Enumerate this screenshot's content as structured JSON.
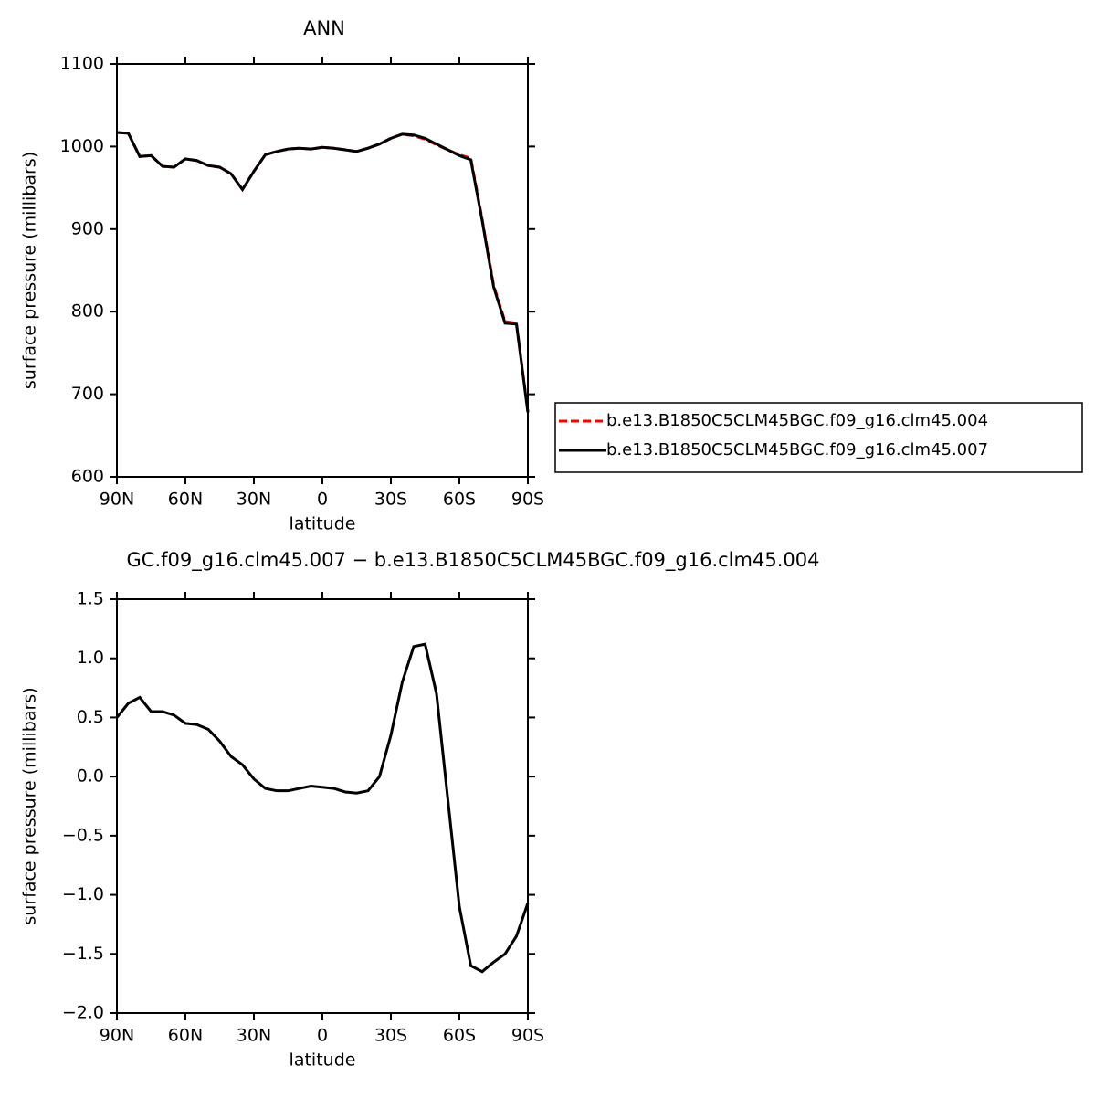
{
  "chart_data": [
    {
      "type": "line",
      "title": "ANN",
      "xlabel": "latitude",
      "ylabel": "surface pressure (millibars)",
      "x": [
        90,
        85,
        80,
        75,
        70,
        65,
        60,
        55,
        50,
        45,
        40,
        35,
        30,
        25,
        20,
        15,
        10,
        5,
        0,
        -5,
        -10,
        -15,
        -20,
        -25,
        -30,
        -35,
        -40,
        -45,
        -50,
        -55,
        -60,
        -65,
        -70,
        -75,
        -80,
        -85,
        -90
      ],
      "series": [
        {
          "name": "b.e13.B1850C5CLM45BGC.f09_g16.clm45.004",
          "color": "#ff0000",
          "dash": true,
          "values": [
            1017,
            1016,
            988,
            989,
            976,
            975,
            985,
            983,
            977,
            975,
            967,
            948,
            970,
            990,
            994,
            997,
            998,
            997,
            999,
            998,
            996,
            994,
            998,
            1003,
            1010,
            1015,
            1013,
            1009,
            1002,
            996,
            990,
            986,
            912,
            832,
            788,
            786,
            679
          ]
        },
        {
          "name": "b.e13.B1850C5CLM45BGC.f09_g16.clm45.007",
          "color": "#000000",
          "dash": false,
          "values": [
            1017,
            1016,
            988,
            989,
            976,
            975,
            985,
            983,
            977,
            975,
            967,
            948,
            970,
            990,
            994,
            997,
            998,
            997,
            999,
            998,
            996,
            994,
            998,
            1003,
            1010,
            1015,
            1014,
            1010,
            1003,
            996,
            989,
            984,
            910,
            830,
            786,
            785,
            678
          ]
        }
      ],
      "xlim": [
        90,
        -90
      ],
      "xticks": [
        {
          "value": 90,
          "label": "90N"
        },
        {
          "value": 60,
          "label": "60N"
        },
        {
          "value": 30,
          "label": "30N"
        },
        0,
        {
          "value": -30,
          "label": "30S"
        },
        {
          "value": -60,
          "label": "60S"
        },
        {
          "value": -90,
          "label": "90S"
        }
      ],
      "ylim": [
        600,
        1100
      ],
      "yticks": [
        600,
        700,
        800,
        900,
        1000,
        1100
      ]
    },
    {
      "type": "line",
      "title": "GC.f09_g16.clm45.007 − b.e13.B1850C5CLM45BGC.f09_g16.clm45.004",
      "xlabel": "latitude",
      "ylabel": "surface pressure (millibars)",
      "x": [
        90,
        85,
        80,
        75,
        70,
        65,
        60,
        55,
        50,
        45,
        40,
        35,
        30,
        25,
        20,
        15,
        10,
        5,
        0,
        -5,
        -10,
        -15,
        -20,
        -25,
        -30,
        -35,
        -40,
        -45,
        -50,
        -55,
        -60,
        -65,
        -70,
        -75,
        -80,
        -85,
        -90
      ],
      "series": [
        {
          "color": "#000000",
          "dash": false,
          "values": [
            0.5,
            0.62,
            0.67,
            0.55,
            0.55,
            0.52,
            0.45,
            0.44,
            0.4,
            0.3,
            0.17,
            0.1,
            -0.02,
            -0.1,
            -0.12,
            -0.12,
            -0.1,
            -0.08,
            -0.09,
            -0.1,
            -0.13,
            -0.14,
            -0.12,
            0.0,
            0.35,
            0.8,
            1.1,
            1.12,
            0.7,
            -0.2,
            -1.1,
            -1.6,
            -1.65,
            -1.57,
            -1.5,
            -1.35,
            -1.07
          ]
        }
      ],
      "xlim": [
        90,
        -90
      ],
      "xticks": [
        {
          "value": 90,
          "label": "90N"
        },
        {
          "value": 60,
          "label": "60N"
        },
        {
          "value": 30,
          "label": "30N"
        },
        0,
        {
          "value": -30,
          "label": "30S"
        },
        {
          "value": -60,
          "label": "60S"
        },
        {
          "value": -90,
          "label": "90S"
        }
      ],
      "ylim": [
        -2.0,
        1.5
      ],
      "yticks": [
        {
          "value": -2.0,
          "label": "−2.0"
        },
        {
          "value": -1.5,
          "label": "−1.5"
        },
        {
          "value": -1.0,
          "label": "−1.0"
        },
        {
          "value": -0.5,
          "label": "−0.5"
        },
        {
          "value": 0,
          "label": "0.0"
        },
        0.5,
        {
          "value": 1.0,
          "label": "1.0"
        },
        1.5
      ]
    }
  ]
}
